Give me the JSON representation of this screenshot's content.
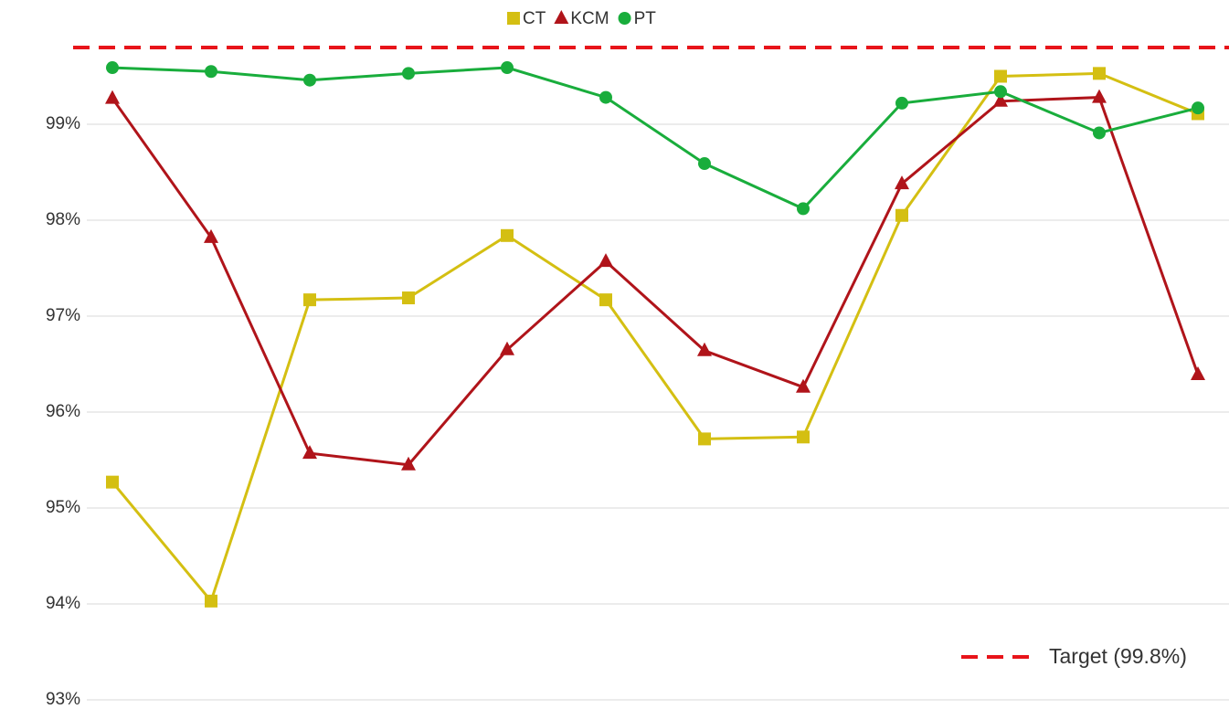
{
  "chart_data": {
    "type": "line",
    "categories": [
      null,
      null,
      null,
      null,
      null,
      null,
      null,
      null,
      null,
      null,
      null,
      null
    ],
    "series": [
      {
        "name": "CT",
        "color": "#d4bf12",
        "marker": "square",
        "values": [
          95.27,
          94.03,
          97.17,
          97.19,
          97.84,
          97.17,
          95.72,
          95.74,
          98.05,
          99.5,
          99.53,
          99.11
        ]
      },
      {
        "name": "KCM",
        "color": "#b0141a",
        "marker": "triangle",
        "values": [
          99.27,
          97.82,
          95.57,
          95.45,
          96.65,
          97.57,
          96.64,
          96.26,
          98.38,
          99.24,
          99.28,
          96.39
        ]
      },
      {
        "name": "PT",
        "color": "#19ad3c",
        "marker": "circle",
        "values": [
          99.59,
          99.55,
          99.46,
          99.53,
          99.59,
          99.28,
          98.59,
          98.12,
          99.22,
          99.34,
          98.91,
          99.17
        ]
      }
    ],
    "target": {
      "label": "Target (99.8%)",
      "value": 99.8,
      "color": "#e8141a"
    },
    "ylim": [
      93,
      100
    ],
    "yticks": [
      {
        "value": 93,
        "label": "93%"
      },
      {
        "value": 94,
        "label": "94%"
      },
      {
        "value": 95,
        "label": "95%"
      },
      {
        "value": 96,
        "label": "96%"
      },
      {
        "value": 97,
        "label": "97%"
      },
      {
        "value": 98,
        "label": "98%"
      },
      {
        "value": 99,
        "label": "99%"
      }
    ],
    "grid": true,
    "legend": "top"
  }
}
